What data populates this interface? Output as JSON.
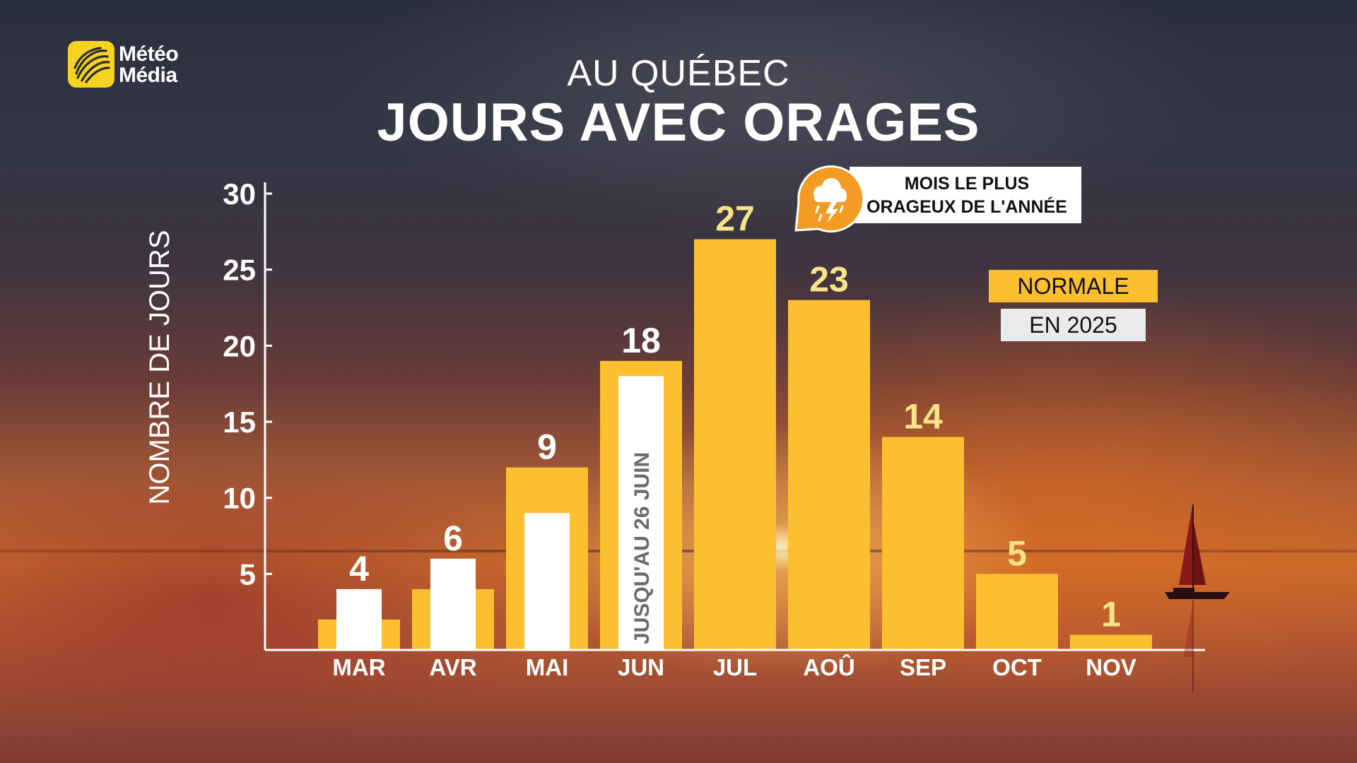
{
  "brand": {
    "line1": "Météo",
    "line2": "Média",
    "accent": "#f6d223"
  },
  "header": {
    "subtitle": "AU QUÉBEC",
    "title": "JOURS AVEC ORAGES"
  },
  "callout": {
    "text_line1": "MOIS LE PLUS",
    "text_line2": "ORAGEUX DE L'ANNÉE",
    "icon": "storm-cloud-icon",
    "icon_color": "#f39b22"
  },
  "legend": {
    "normal_label": "NORMALE",
    "current_label": "EN 2025",
    "normal_color": "#fbbf2f",
    "current_color": "#ffffff"
  },
  "chart_data": {
    "type": "bar",
    "title": "JOURS AVEC ORAGES",
    "subtitle": "AU QUÉBEC",
    "ylabel": "NOMBRE DE JOURS",
    "xlabel": "",
    "ylim": [
      0,
      30
    ],
    "yticks": [
      5,
      10,
      15,
      20,
      25,
      30
    ],
    "grid": false,
    "legend_position": "right",
    "categories": [
      "MAR",
      "AVR",
      "MAI",
      "JUN",
      "JUL",
      "AOÛ",
      "SEP",
      "OCT",
      "NOV"
    ],
    "series": [
      {
        "name": "NORMALE",
        "values": [
          2,
          4,
          12,
          19,
          27,
          23,
          14,
          5,
          1
        ],
        "color": "#fbbf2f"
      },
      {
        "name": "EN 2025",
        "values": [
          4,
          6,
          9,
          18,
          null,
          null,
          null,
          null,
          null
        ],
        "color": "#ffffff"
      }
    ],
    "data_labels": [
      "4",
      "6",
      "9",
      "18",
      "27",
      "23",
      "14",
      "5",
      "1"
    ],
    "annotations": [
      {
        "category": "JUN",
        "text": "JUSQU'AU 26 JUIN"
      },
      {
        "category": "JUL",
        "text": "MOIS LE PLUS ORAGEUX DE L'ANNÉE"
      }
    ]
  }
}
